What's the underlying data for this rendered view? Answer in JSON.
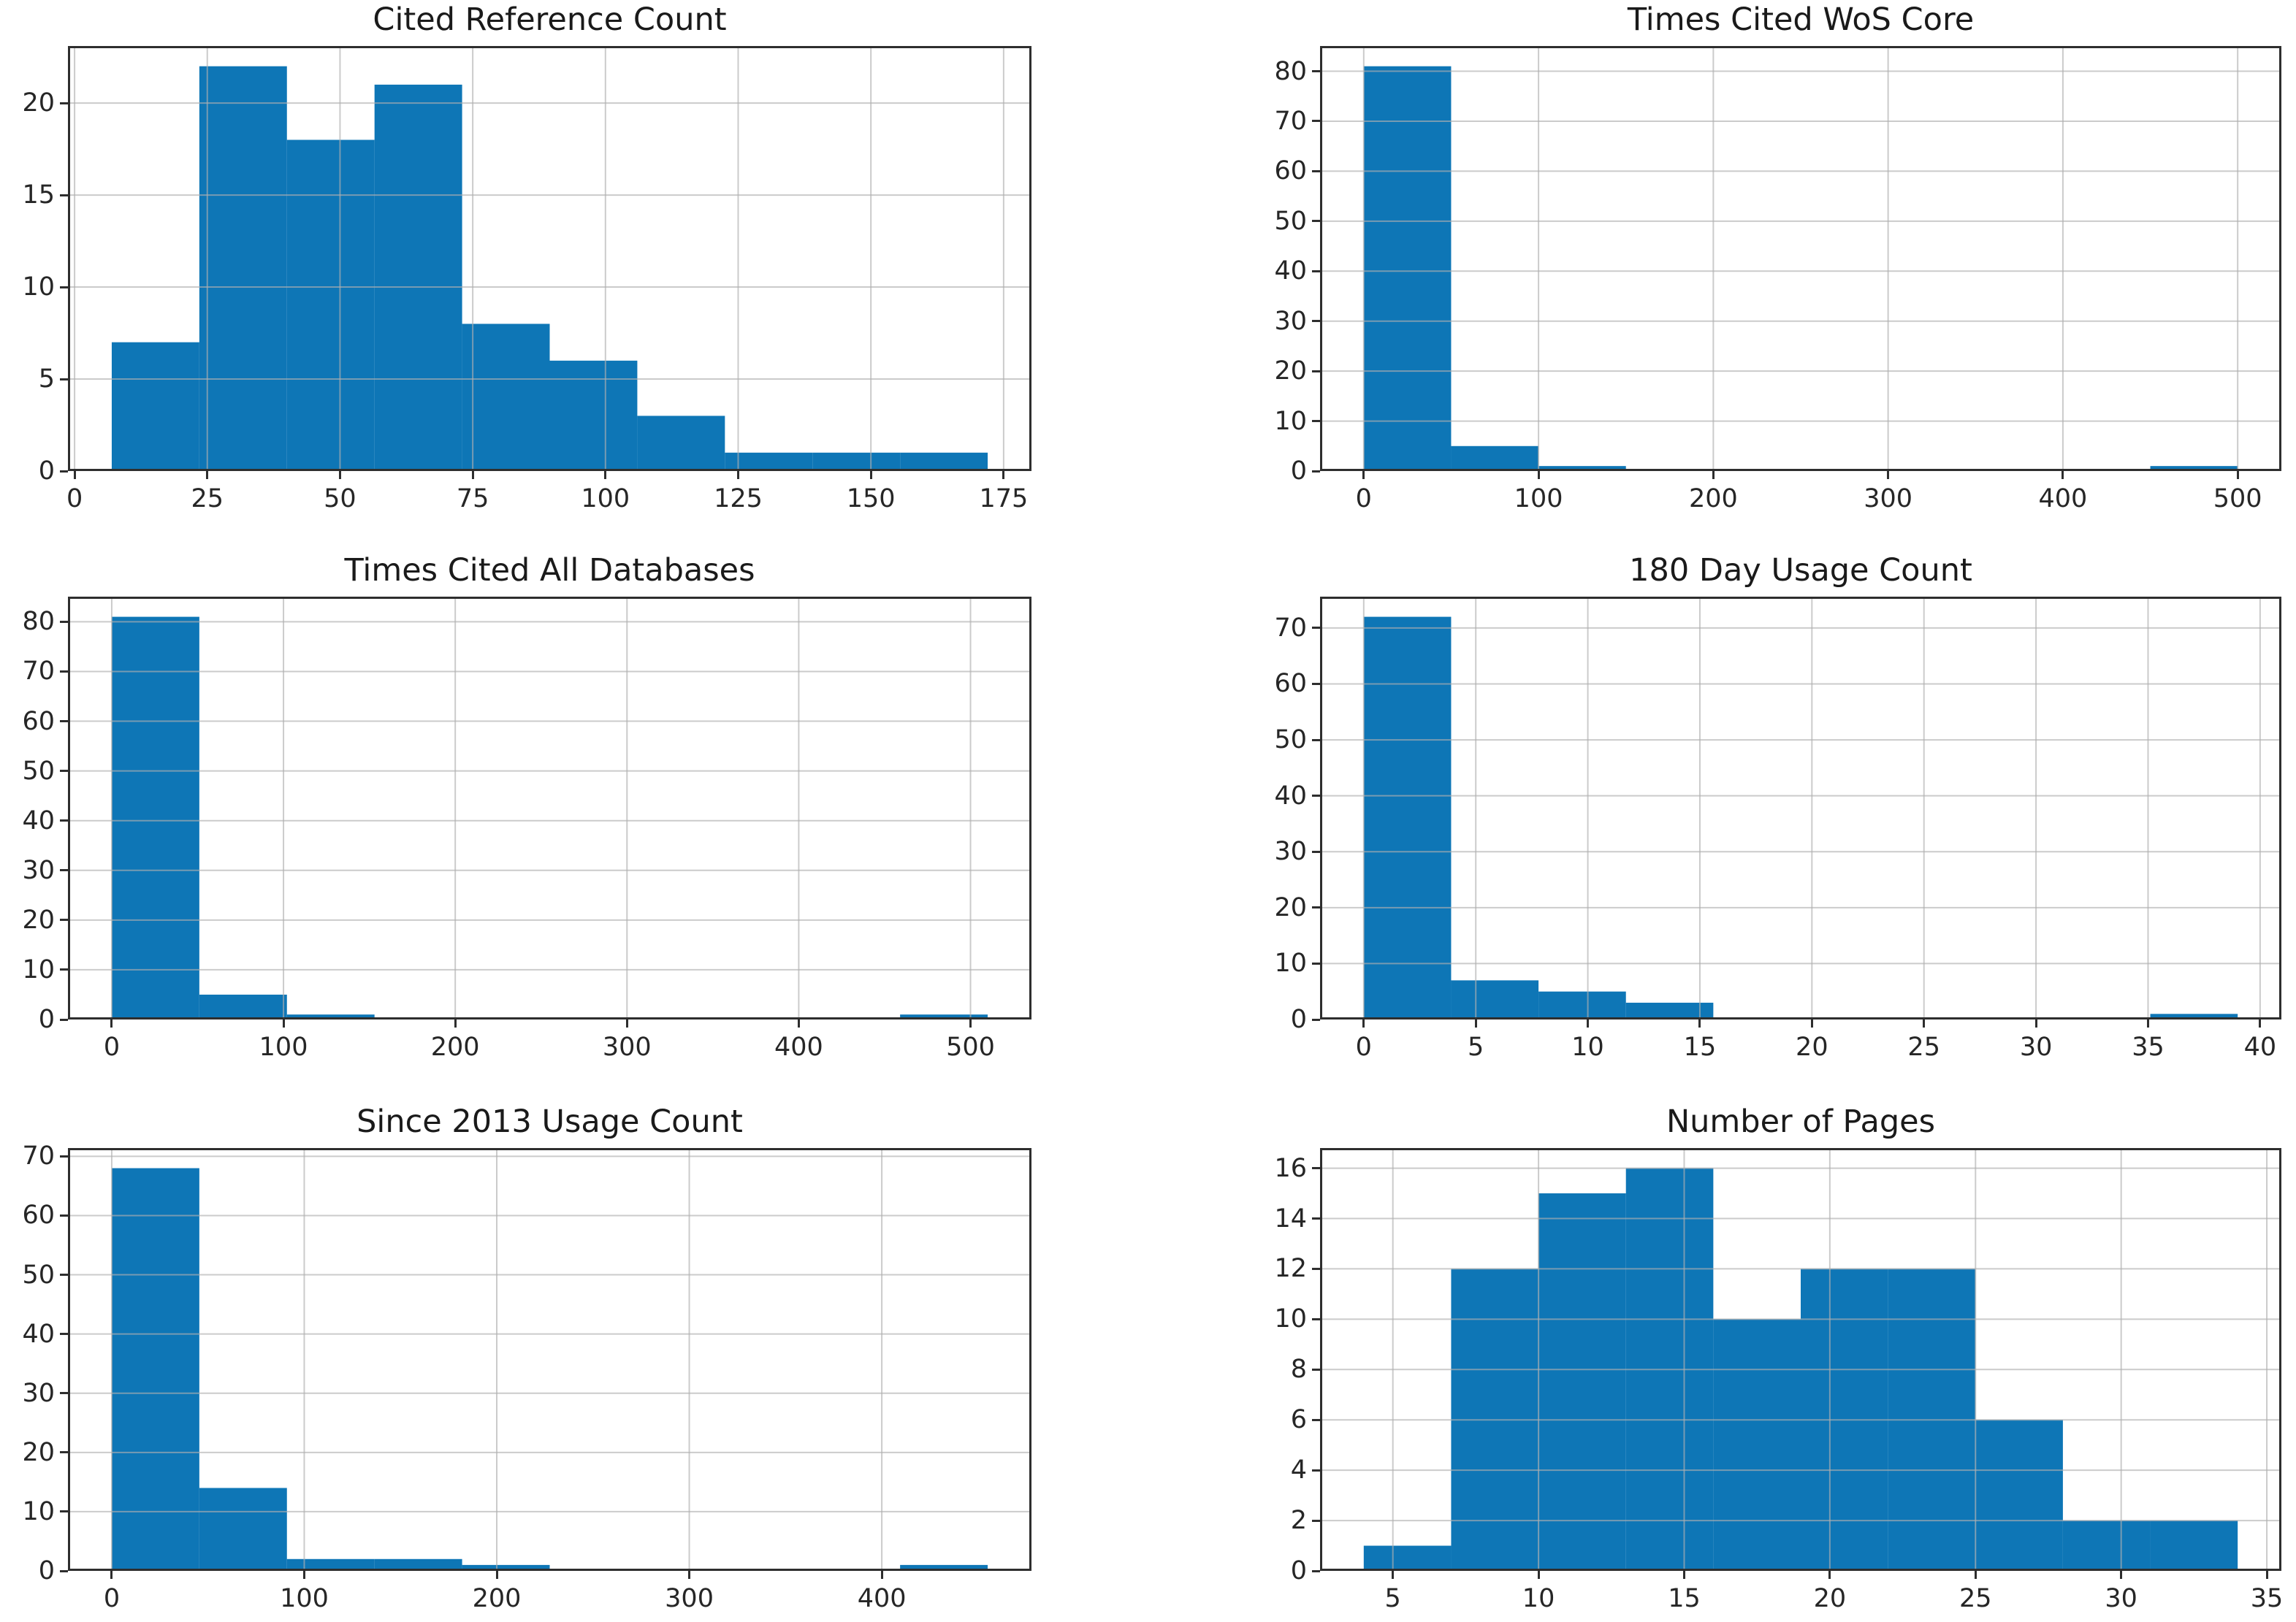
{
  "page": {
    "background": "#ffffff"
  },
  "style": {
    "bar_color": "#0e76b6",
    "grid_color": "#b0b0b0",
    "grid_opacity": 0.65,
    "spine_color": "#2e2e2e",
    "text_color": "#262626"
  },
  "chart_data": [
    {
      "type": "bar",
      "subtype": "histogram",
      "title": "Cited Reference Count",
      "bin_start": 7,
      "bin_width": 16.5,
      "values": [
        7,
        22,
        18,
        21,
        8,
        6,
        3,
        1,
        1,
        1
      ],
      "x_ticks": [
        0,
        25,
        50,
        75,
        100,
        125,
        150,
        175
      ],
      "y_ticks": [
        0,
        5,
        10,
        15,
        20
      ],
      "xlim": [
        -1.25,
        180.25
      ],
      "ylim": [
        0,
        23.1
      ],
      "grid": true,
      "legend": "none"
    },
    {
      "type": "bar",
      "subtype": "histogram",
      "title": "Times Cited WoS Core",
      "bin_start": 0,
      "bin_width": 50,
      "values": [
        81,
        5,
        1,
        0,
        0,
        0,
        0,
        0,
        0,
        1
      ],
      "x_ticks": [
        0,
        100,
        200,
        300,
        400,
        500
      ],
      "y_ticks": [
        0,
        10,
        20,
        30,
        40,
        50,
        60,
        70,
        80
      ],
      "xlim": [
        -25,
        525
      ],
      "ylim": [
        0,
        85.05
      ],
      "grid": true,
      "legend": "none"
    },
    {
      "type": "bar",
      "subtype": "histogram",
      "title": "Times Cited All Databases",
      "bin_start": 0,
      "bin_width": 51,
      "values": [
        81,
        5,
        1,
        0,
        0,
        0,
        0,
        0,
        0,
        1
      ],
      "x_ticks": [
        0,
        100,
        200,
        300,
        400,
        500
      ],
      "y_ticks": [
        0,
        10,
        20,
        30,
        40,
        50,
        60,
        70,
        80
      ],
      "xlim": [
        -25.5,
        535.5
      ],
      "ylim": [
        0,
        85.05
      ],
      "grid": true,
      "legend": "none"
    },
    {
      "type": "bar",
      "subtype": "histogram",
      "title": "180 Day Usage Count",
      "bin_start": 0,
      "bin_width": 3.9,
      "values": [
        72,
        7,
        5,
        3,
        0,
        0,
        0,
        0,
        0,
        1
      ],
      "x_ticks": [
        0,
        5,
        10,
        15,
        20,
        25,
        30,
        35,
        40
      ],
      "y_ticks": [
        0,
        10,
        20,
        30,
        40,
        50,
        60,
        70
      ],
      "xlim": [
        -1.95,
        40.95
      ],
      "ylim": [
        0,
        75.6
      ],
      "grid": true,
      "legend": "none"
    },
    {
      "type": "bar",
      "subtype": "histogram",
      "title": "Since 2013 Usage Count",
      "bin_start": 0,
      "bin_width": 45.5,
      "values": [
        68,
        14,
        2,
        2,
        1,
        0,
        0,
        0,
        0,
        1
      ],
      "x_ticks": [
        0,
        100,
        200,
        300,
        400
      ],
      "y_ticks": [
        0,
        10,
        20,
        30,
        40,
        50,
        60,
        70
      ],
      "xlim": [
        -22.75,
        477.75
      ],
      "ylim": [
        0,
        71.4
      ],
      "grid": true,
      "legend": "none"
    },
    {
      "type": "bar",
      "subtype": "histogram",
      "title": "Number of Pages",
      "bin_start": 4,
      "bin_width": 3,
      "values": [
        1,
        12,
        15,
        16,
        10,
        12,
        12,
        6,
        2,
        2
      ],
      "x_ticks": [
        5,
        10,
        15,
        20,
        25,
        30,
        35
      ],
      "y_ticks": [
        0,
        2,
        4,
        6,
        8,
        10,
        12,
        14,
        16
      ],
      "xlim": [
        2.5,
        35.5
      ],
      "ylim": [
        0,
        16.8
      ],
      "grid": true,
      "legend": "none"
    }
  ]
}
